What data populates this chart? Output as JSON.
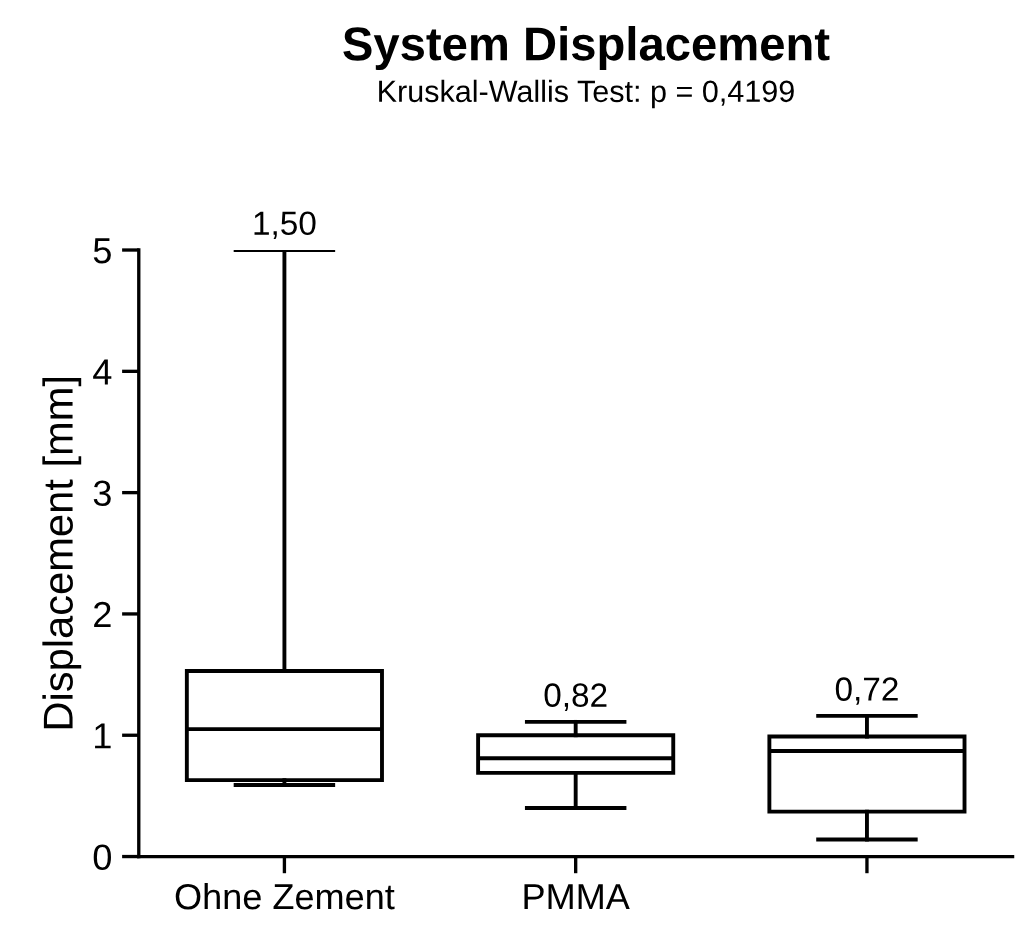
{
  "chart_data": {
    "type": "box",
    "title": "System Displacement",
    "subtitle": "Kruskal-Wallis Test: p = 0,4199",
    "ylabel": "Displacement [mm]",
    "categories": [
      "Ohne Zement",
      "PMMA",
      null
    ],
    "boxes": [
      {
        "low": 0.59,
        "q1": 0.63,
        "median": 1.05,
        "q3": 1.53,
        "high": 5.0
      },
      {
        "low": 0.4,
        "q1": 0.69,
        "median": 0.81,
        "q3": 1.0,
        "high": 1.11
      },
      {
        "low": 0.14,
        "q1": 0.37,
        "median": 0.87,
        "q3": 0.99,
        "high": 1.16
      }
    ],
    "annotations": [
      {
        "text": "1,50",
        "x": "Ohne Zement",
        "y": 5.0
      },
      {
        "text": "0,82",
        "x": "PMMA",
        "y": 1.11
      },
      {
        "text": "0,72",
        "y": 1.16
      }
    ],
    "color": "#000000",
    "ylim": [
      0,
      5
    ],
    "yticks": [
      0,
      1,
      2,
      3,
      4,
      5
    ],
    "grid": false
  }
}
